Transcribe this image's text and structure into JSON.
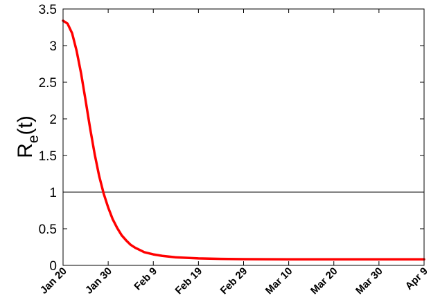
{
  "chart_data": {
    "type": "line",
    "title": "",
    "xlabel": "",
    "ylabel": {
      "main": "R",
      "sub": "e",
      "suffix": "(t)"
    },
    "x_ticks": [
      "Jan 20",
      "Jan 30",
      "Feb 9",
      "Feb 19",
      "Feb 29",
      "Mar 10",
      "Mar 20",
      "Mar 30",
      "Apr 9"
    ],
    "x_tick_dates": [
      "2020-01-20",
      "2020-01-30",
      "2020-02-09",
      "2020-02-19",
      "2020-02-29",
      "2020-03-10",
      "2020-03-20",
      "2020-03-30",
      "2020-04-09"
    ],
    "xlim": [
      "2020-01-20",
      "2020-04-09"
    ],
    "ylim": [
      0,
      3.5
    ],
    "y_ticks": [
      "0",
      "0.5",
      "1",
      "1.5",
      "2",
      "2.5",
      "3",
      "3.5"
    ],
    "y_tick_values": [
      0,
      0.5,
      1,
      1.5,
      2,
      2.5,
      3,
      3.5
    ],
    "reference_line": {
      "y": 1,
      "color": "#000000"
    },
    "grid": false,
    "series": [
      {
        "color": "#ff0000",
        "x": [
          "2020-01-20",
          "2020-01-21",
          "2020-01-22",
          "2020-01-23",
          "2020-01-24",
          "2020-01-25",
          "2020-01-26",
          "2020-01-27",
          "2020-01-28",
          "2020-01-29",
          "2020-01-30",
          "2020-01-31",
          "2020-02-01",
          "2020-02-02",
          "2020-02-03",
          "2020-02-04",
          "2020-02-05",
          "2020-02-06",
          "2020-02-07",
          "2020-02-09",
          "2020-02-11",
          "2020-02-14",
          "2020-02-19",
          "2020-02-24",
          "2020-02-29",
          "2020-03-10",
          "2020-03-20",
          "2020-03-30",
          "2020-04-09"
        ],
        "y": [
          3.34,
          3.3,
          3.17,
          2.93,
          2.62,
          2.25,
          1.87,
          1.52,
          1.22,
          0.98,
          0.79,
          0.63,
          0.51,
          0.41,
          0.34,
          0.28,
          0.24,
          0.21,
          0.18,
          0.15,
          0.13,
          0.11,
          0.095,
          0.088,
          0.085,
          0.083,
          0.082,
          0.082,
          0.082
        ]
      }
    ]
  }
}
